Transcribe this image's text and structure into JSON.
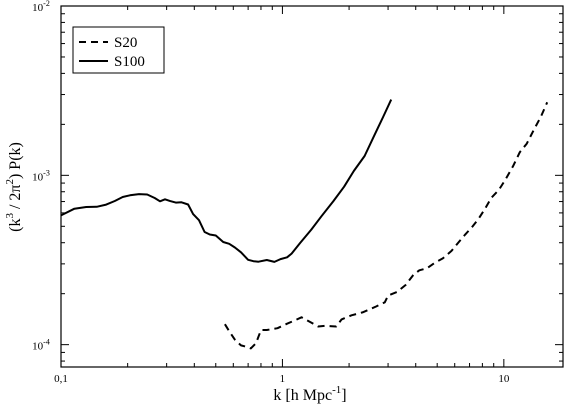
{
  "chart_data": {
    "type": "line",
    "xlabel": "k  [h Mpc-1]",
    "ylabel": "(k3 / 2π2) P(k)",
    "xscale": "log",
    "yscale": "log",
    "xlim": [
      0.1,
      18.5
    ],
    "ylim": [
      7.38e-05,
      0.01
    ],
    "grid": false,
    "legend_position": "top-left",
    "x_tick_labels": [
      {
        "value": 0.1,
        "label": "0,1"
      },
      {
        "value": 1,
        "label": "1"
      },
      {
        "value": 10,
        "label": "10"
      }
    ],
    "y_tick_labels": [
      {
        "value": 0.0001,
        "base": "10",
        "exp": "-4"
      },
      {
        "value": 0.001,
        "base": "10",
        "exp": "-3"
      },
      {
        "value": 0.01,
        "base": "10",
        "exp": "-2"
      }
    ],
    "series": [
      {
        "name": "S20",
        "style": "dashed",
        "color": "#000000",
        "points": [
          [
            0.55,
            0.000132
          ],
          [
            0.58,
            0.000118
          ],
          [
            0.61,
            0.000107
          ],
          [
            0.65,
            9.9e-05
          ],
          [
            0.69,
            9.7e-05
          ],
          [
            0.72,
            9.5e-05
          ],
          [
            0.76,
            0.000102
          ],
          [
            0.8,
            0.000122
          ],
          [
            0.85,
            0.000122
          ],
          [
            0.95,
            0.000125
          ],
          [
            1.05,
            0.000133
          ],
          [
            1.15,
            0.00014
          ],
          [
            1.22,
            0.000145
          ],
          [
            1.35,
            0.000135
          ],
          [
            1.45,
            0.000128
          ],
          [
            1.55,
            0.000129
          ],
          [
            1.75,
            0.000128
          ],
          [
            1.85,
            0.000141
          ],
          [
            2.05,
            0.000149
          ],
          [
            2.3,
            0.000155
          ],
          [
            2.65,
            0.000168
          ],
          [
            2.9,
            0.000178
          ],
          [
            3.0,
            0.000195
          ],
          [
            3.3,
            0.000205
          ],
          [
            3.6,
            0.000225
          ],
          [
            3.9,
            0.000258
          ],
          [
            4.15,
            0.000275
          ],
          [
            4.5,
            0.000283
          ],
          [
            4.85,
            0.000303
          ],
          [
            5.3,
            0.000323
          ],
          [
            5.8,
            0.000358
          ],
          [
            6.2,
            0.000398
          ],
          [
            6.7,
            0.000448
          ],
          [
            7.2,
            0.000497
          ],
          [
            7.7,
            0.000555
          ],
          [
            8.2,
            0.000632
          ],
          [
            8.8,
            0.000739
          ],
          [
            9.5,
            0.00082
          ],
          [
            10.2,
            0.00095
          ],
          [
            11.0,
            0.00113
          ],
          [
            11.8,
            0.00137
          ],
          [
            12.7,
            0.00154
          ],
          [
            13.7,
            0.00187
          ],
          [
            14.7,
            0.00222
          ],
          [
            15.7,
            0.0027
          ]
        ]
      },
      {
        "name": "S100",
        "style": "solid",
        "color": "#000000",
        "points": [
          [
            0.1,
            0.00058
          ],
          [
            0.115,
            0.000635
          ],
          [
            0.13,
            0.00065
          ],
          [
            0.145,
            0.000652
          ],
          [
            0.16,
            0.000672
          ],
          [
            0.175,
            0.000705
          ],
          [
            0.19,
            0.000745
          ],
          [
            0.205,
            0.000762
          ],
          [
            0.225,
            0.000775
          ],
          [
            0.245,
            0.00077
          ],
          [
            0.265,
            0.000735
          ],
          [
            0.28,
            0.000702
          ],
          [
            0.295,
            0.000722
          ],
          [
            0.31,
            0.000706
          ],
          [
            0.33,
            0.00069
          ],
          [
            0.35,
            0.000693
          ],
          [
            0.375,
            0.000673
          ],
          [
            0.395,
            0.00059
          ],
          [
            0.42,
            0.000543
          ],
          [
            0.445,
            0.000463
          ],
          [
            0.47,
            0.000447
          ],
          [
            0.5,
            0.000441
          ],
          [
            0.54,
            0.000404
          ],
          [
            0.575,
            0.000394
          ],
          [
            0.61,
            0.000375
          ],
          [
            0.65,
            0.000351
          ],
          [
            0.7,
            0.000317
          ],
          [
            0.74,
            0.000311
          ],
          [
            0.78,
            0.000309
          ],
          [
            0.85,
            0.000316
          ],
          [
            0.92,
            0.000308
          ],
          [
            0.98,
            0.00032
          ],
          [
            1.05,
            0.000328
          ],
          [
            1.1,
            0.000345
          ],
          [
            1.2,
            0.000398
          ],
          [
            1.35,
            0.000478
          ],
          [
            1.5,
            0.000573
          ],
          [
            1.7,
            0.000704
          ],
          [
            1.9,
            0.000857
          ],
          [
            2.1,
            0.00106
          ],
          [
            2.35,
            0.0013
          ],
          [
            2.6,
            0.00172
          ],
          [
            2.85,
            0.00221
          ],
          [
            3.1,
            0.0028
          ]
        ]
      }
    ]
  }
}
